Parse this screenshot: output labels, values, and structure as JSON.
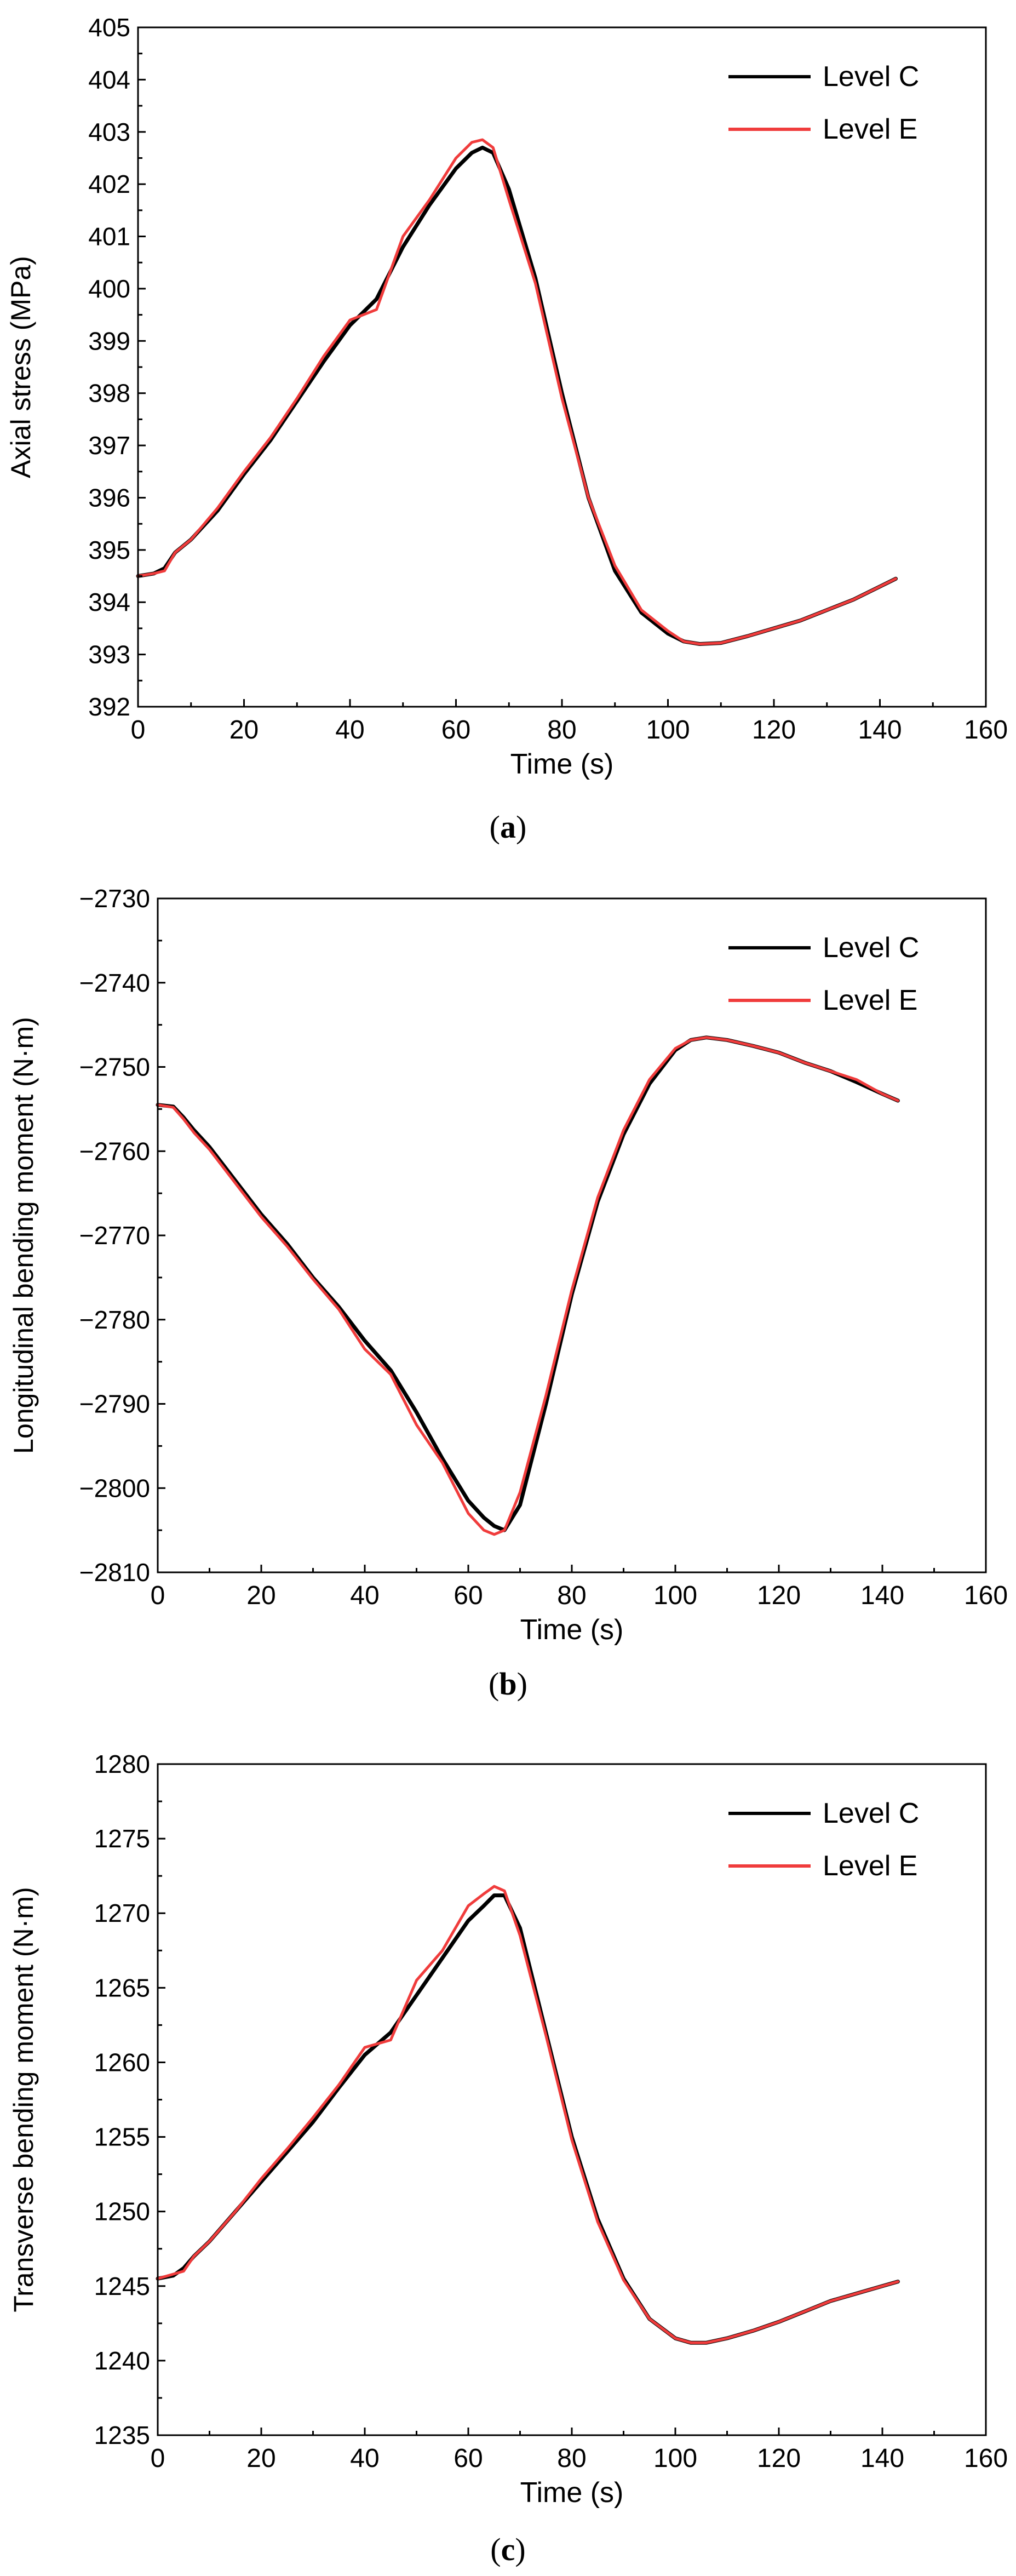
{
  "figure": {
    "captions": [
      {
        "open": "(",
        "letter": "a",
        "close": ")"
      },
      {
        "open": "(",
        "letter": "b",
        "close": ")"
      },
      {
        "open": "(",
        "letter": "c",
        "close": ")"
      }
    ]
  },
  "chart_data": [
    {
      "type": "line",
      "title": "",
      "xlabel": "Time (s)",
      "ylabel": "Axial stress (MPa)",
      "xlim": [
        0,
        160
      ],
      "ylim": [
        392,
        405
      ],
      "xticks": [
        0,
        20,
        40,
        60,
        80,
        100,
        120,
        140,
        160
      ],
      "yticks": [
        392,
        393,
        394,
        395,
        396,
        397,
        398,
        399,
        400,
        401,
        402,
        403,
        404,
        405
      ],
      "xtick_labels": [
        "0",
        "20",
        "40",
        "60",
        "80",
        "100",
        "120",
        "140",
        "160"
      ],
      "ytick_labels": [
        "392",
        "393",
        "394",
        "395",
        "396",
        "397",
        "398",
        "399",
        "400",
        "401",
        "402",
        "403",
        "404",
        "405"
      ],
      "legend_position": "top-right",
      "grid": false,
      "series": [
        {
          "name": "Level C",
          "color": "#000000",
          "x": [
            0,
            3,
            5,
            7,
            10,
            15,
            20,
            25,
            30,
            35,
            40,
            45,
            50,
            55,
            60,
            63,
            65,
            67,
            70,
            75,
            80,
            85,
            90,
            95,
            100,
            103,
            106,
            110,
            115,
            120,
            125,
            130,
            135,
            140,
            143
          ],
          "y": [
            394.5,
            394.55,
            394.65,
            394.95,
            395.2,
            395.75,
            396.45,
            397.1,
            397.85,
            398.6,
            399.3,
            399.8,
            400.8,
            401.6,
            402.3,
            402.6,
            402.7,
            402.6,
            401.9,
            400.2,
            398.0,
            396.0,
            394.6,
            393.8,
            393.4,
            393.25,
            393.2,
            393.22,
            393.35,
            393.5,
            393.65,
            393.85,
            394.05,
            394.3,
            394.45
          ]
        },
        {
          "name": "Level E",
          "color": "#f03c3c",
          "x": [
            0,
            3,
            5,
            7,
            10,
            15,
            20,
            25,
            30,
            35,
            40,
            45,
            50,
            55,
            60,
            63,
            65,
            67,
            70,
            75,
            80,
            85,
            90,
            95,
            100,
            103,
            106,
            110,
            115,
            120,
            125,
            130,
            135,
            140,
            143
          ],
          "y": [
            394.5,
            394.55,
            394.6,
            394.95,
            395.2,
            395.8,
            396.5,
            397.15,
            397.9,
            398.7,
            399.4,
            399.6,
            401.0,
            401.7,
            402.5,
            402.8,
            402.85,
            402.7,
            401.7,
            400.1,
            397.9,
            396.0,
            394.7,
            393.85,
            393.45,
            393.25,
            393.2,
            393.22,
            393.35,
            393.5,
            393.65,
            393.85,
            394.05,
            394.3,
            394.45
          ]
        }
      ]
    },
    {
      "type": "line",
      "title": "",
      "xlabel": "Time (s)",
      "ylabel": "Longitudinal bending moment (N·m)",
      "xlim": [
        0,
        160
      ],
      "ylim": [
        -2810,
        -2730
      ],
      "xticks": [
        0,
        20,
        40,
        60,
        80,
        100,
        120,
        140,
        160
      ],
      "yticks": [
        -2810,
        -2800,
        -2790,
        -2780,
        -2770,
        -2760,
        -2750,
        -2740,
        -2730
      ],
      "xtick_labels": [
        "0",
        "20",
        "40",
        "60",
        "80",
        "100",
        "120",
        "140",
        "160"
      ],
      "ytick_labels": [
        "−2810",
        "−2800",
        "−2790",
        "−2780",
        "−2770",
        "−2760",
        "−2750",
        "−2740",
        "−2730"
      ],
      "legend_position": "top-right",
      "grid": false,
      "series": [
        {
          "name": "Level C",
          "color": "#000000",
          "x": [
            0,
            3,
            5,
            7,
            10,
            15,
            20,
            25,
            30,
            35,
            40,
            45,
            50,
            55,
            60,
            63,
            65,
            67,
            70,
            75,
            80,
            85,
            90,
            95,
            100,
            103,
            106,
            110,
            115,
            120,
            125,
            130,
            135,
            140,
            143
          ],
          "y": [
            -2754.5,
            -2754.7,
            -2756.0,
            -2757.5,
            -2759.5,
            -2763.5,
            -2767.5,
            -2771.0,
            -2775.0,
            -2778.5,
            -2782.5,
            -2786.0,
            -2791.0,
            -2796.5,
            -2801.5,
            -2803.5,
            -2804.5,
            -2805.0,
            -2802.0,
            -2790.0,
            -2777.0,
            -2766.0,
            -2758.0,
            -2752.0,
            -2748.0,
            -2746.8,
            -2746.5,
            -2746.8,
            -2747.5,
            -2748.3,
            -2749.5,
            -2750.5,
            -2751.8,
            -2753.2,
            -2754.0
          ]
        },
        {
          "name": "Level E",
          "color": "#f03c3c",
          "x": [
            0,
            3,
            5,
            7,
            10,
            15,
            20,
            25,
            30,
            35,
            40,
            45,
            50,
            55,
            60,
            63,
            65,
            67,
            70,
            75,
            80,
            85,
            90,
            95,
            100,
            103,
            106,
            110,
            115,
            120,
            125,
            130,
            135,
            140,
            143
          ],
          "y": [
            -2754.5,
            -2754.8,
            -2756.2,
            -2757.8,
            -2759.8,
            -2763.8,
            -2767.8,
            -2771.3,
            -2775.2,
            -2778.8,
            -2783.5,
            -2786.5,
            -2792.5,
            -2797.0,
            -2803.0,
            -2805.0,
            -2805.5,
            -2805.0,
            -2800.5,
            -2789.0,
            -2776.5,
            -2765.5,
            -2757.5,
            -2751.5,
            -2747.8,
            -2746.8,
            -2746.5,
            -2746.8,
            -2747.5,
            -2748.3,
            -2749.5,
            -2750.5,
            -2751.5,
            -2753.2,
            -2754.0
          ]
        }
      ]
    },
    {
      "type": "line",
      "title": "",
      "xlabel": "Time (s)",
      "ylabel": "Transverse bending moment (N·m)",
      "xlim": [
        0,
        160
      ],
      "ylim": [
        1235,
        1280
      ],
      "xticks": [
        0,
        20,
        40,
        60,
        80,
        100,
        120,
        140,
        160
      ],
      "yticks": [
        1235,
        1240,
        1245,
        1250,
        1255,
        1260,
        1265,
        1270,
        1275,
        1280
      ],
      "xtick_labels": [
        "0",
        "20",
        "40",
        "60",
        "80",
        "100",
        "120",
        "140",
        "160"
      ],
      "ytick_labels": [
        "1235",
        "1240",
        "1245",
        "1250",
        "1255",
        "1260",
        "1265",
        "1270",
        "1275",
        "1280"
      ],
      "legend_position": "top-right",
      "grid": false,
      "series": [
        {
          "name": "Level C",
          "color": "#000000",
          "x": [
            0,
            3,
            5,
            7,
            10,
            15,
            20,
            25,
            30,
            35,
            40,
            45,
            50,
            55,
            60,
            63,
            65,
            67,
            70,
            75,
            80,
            85,
            90,
            95,
            100,
            103,
            106,
            110,
            115,
            120,
            125,
            130,
            135,
            140,
            143
          ],
          "y": [
            1245.5,
            1245.7,
            1246.2,
            1247.0,
            1248.0,
            1250.0,
            1252.0,
            1254.0,
            1256.0,
            1258.3,
            1260.5,
            1262.0,
            1264.5,
            1267.0,
            1269.5,
            1270.5,
            1271.2,
            1271.2,
            1269.0,
            1262.0,
            1255.0,
            1249.5,
            1245.5,
            1242.8,
            1241.5,
            1241.2,
            1241.2,
            1241.5,
            1242.0,
            1242.6,
            1243.3,
            1244.0,
            1244.5,
            1245.0,
            1245.3
          ]
        },
        {
          "name": "Level E",
          "color": "#f03c3c",
          "x": [
            0,
            3,
            5,
            7,
            10,
            15,
            20,
            25,
            30,
            35,
            40,
            45,
            50,
            55,
            60,
            63,
            65,
            67,
            70,
            75,
            80,
            85,
            90,
            95,
            100,
            103,
            106,
            110,
            115,
            120,
            125,
            130,
            135,
            140,
            143
          ],
          "y": [
            1245.5,
            1245.8,
            1246.0,
            1247.0,
            1248.0,
            1250.0,
            1252.2,
            1254.2,
            1256.3,
            1258.5,
            1261.0,
            1261.5,
            1265.5,
            1267.5,
            1270.5,
            1271.3,
            1271.8,
            1271.5,
            1268.5,
            1261.8,
            1254.8,
            1249.3,
            1245.4,
            1242.8,
            1241.5,
            1241.2,
            1241.2,
            1241.5,
            1242.0,
            1242.6,
            1243.3,
            1244.0,
            1244.5,
            1245.0,
            1245.3
          ]
        }
      ]
    }
  ]
}
